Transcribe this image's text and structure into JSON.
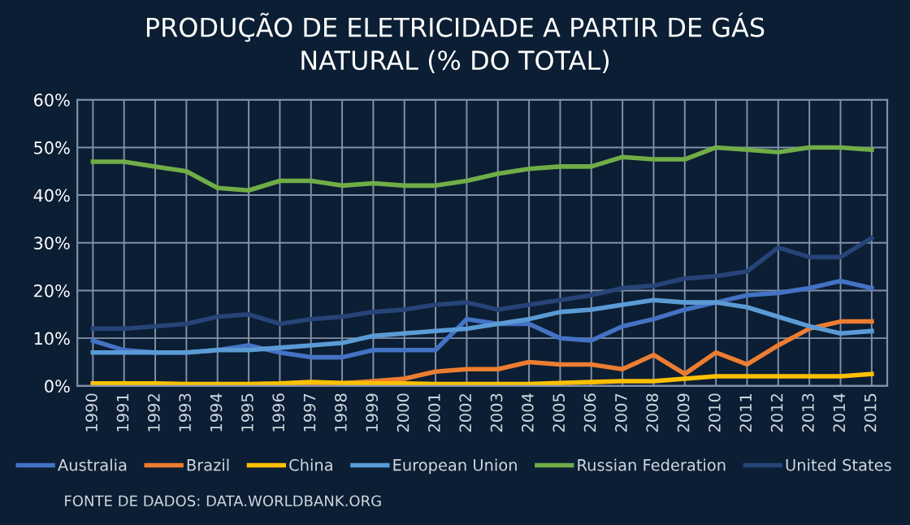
{
  "chart_data": {
    "type": "line",
    "title": "PRODUÇÃO DE ELETRICIDADE A PARTIR DE GÁS\nNATURAL (% DO TOTAL)",
    "categories": [
      "1990",
      "1991",
      "1992",
      "1993",
      "1994",
      "1995",
      "1996",
      "1997",
      "1998",
      "1999",
      "2000",
      "2001",
      "2002",
      "2003",
      "2004",
      "2005",
      "2006",
      "2007",
      "2008",
      "2009",
      "2010",
      "2011",
      "2012",
      "2013",
      "2014",
      "2015"
    ],
    "series": [
      {
        "name": "Australia",
        "color": "#4472c4",
        "values": [
          9.5,
          7.5,
          7,
          7,
          7.5,
          8.5,
          7,
          6,
          6,
          7.5,
          7.5,
          7.5,
          14,
          13,
          13,
          10,
          9.5,
          12.5,
          14,
          16,
          17.5,
          19,
          19.5,
          20.5,
          22,
          20.5
        ]
      },
      {
        "name": "Brazil",
        "color": "#ed7d31",
        "values": [
          0.5,
          0.3,
          0.3,
          0.3,
          0.3,
          0.3,
          0.3,
          0.3,
          0.5,
          1,
          1.5,
          3,
          3.5,
          3.5,
          5,
          4.5,
          4.5,
          3.5,
          6.5,
          2.5,
          7,
          4.5,
          8.5,
          12,
          13.5,
          13.5
        ]
      },
      {
        "name": "China",
        "color": "#ffc000",
        "values": [
          0.5,
          0.5,
          0.5,
          0.4,
          0.4,
          0.4,
          0.5,
          0.8,
          0.6,
          0.5,
          0.5,
          0.4,
          0.4,
          0.4,
          0.4,
          0.6,
          0.8,
          1,
          1,
          1.5,
          2,
          2,
          2,
          2,
          2,
          2.5
        ]
      },
      {
        "name": "European Union",
        "color": "#5b9bd5",
        "values": [
          7,
          7,
          7,
          7,
          7.5,
          7.5,
          8,
          8.5,
          9,
          10.5,
          11,
          11.5,
          12,
          13,
          14,
          15.5,
          16,
          17,
          18,
          17.5,
          17.5,
          16.5,
          14.5,
          12.5,
          11,
          11.5
        ]
      },
      {
        "name": "Russian Federation",
        "color": "#70ad47",
        "values": [
          47,
          47,
          46,
          45,
          41.5,
          41,
          43,
          43,
          42,
          42.5,
          42,
          42,
          43,
          44.5,
          45.5,
          46,
          46,
          48,
          47.5,
          47.5,
          50,
          49.5,
          49,
          50,
          50,
          49.5
        ]
      },
      {
        "name": "United States",
        "color": "#264478",
        "values": [
          12,
          12,
          12.5,
          13,
          14.5,
          15,
          13,
          14,
          14.5,
          15.5,
          16,
          17,
          17.5,
          16,
          17,
          18,
          19,
          20.5,
          21,
          22.5,
          23,
          24,
          29,
          27,
          27,
          31
        ]
      }
    ],
    "ylim": [
      0,
      60
    ],
    "yticks": [
      {
        "value": 0,
        "label": "0%"
      },
      {
        "value": 10,
        "label": "10%"
      },
      {
        "value": 20,
        "label": "20%"
      },
      {
        "value": 30,
        "label": "30%"
      },
      {
        "value": 40,
        "label": "40%"
      },
      {
        "value": 50,
        "label": "50%"
      },
      {
        "value": 60,
        "label": "60%"
      }
    ],
    "grid": true,
    "legend": "bottom",
    "marker": "none",
    "line_style": "solid",
    "annotations": [
      "FONTE DE DADOS: DATA.WORLDBANK.ORG"
    ]
  }
}
